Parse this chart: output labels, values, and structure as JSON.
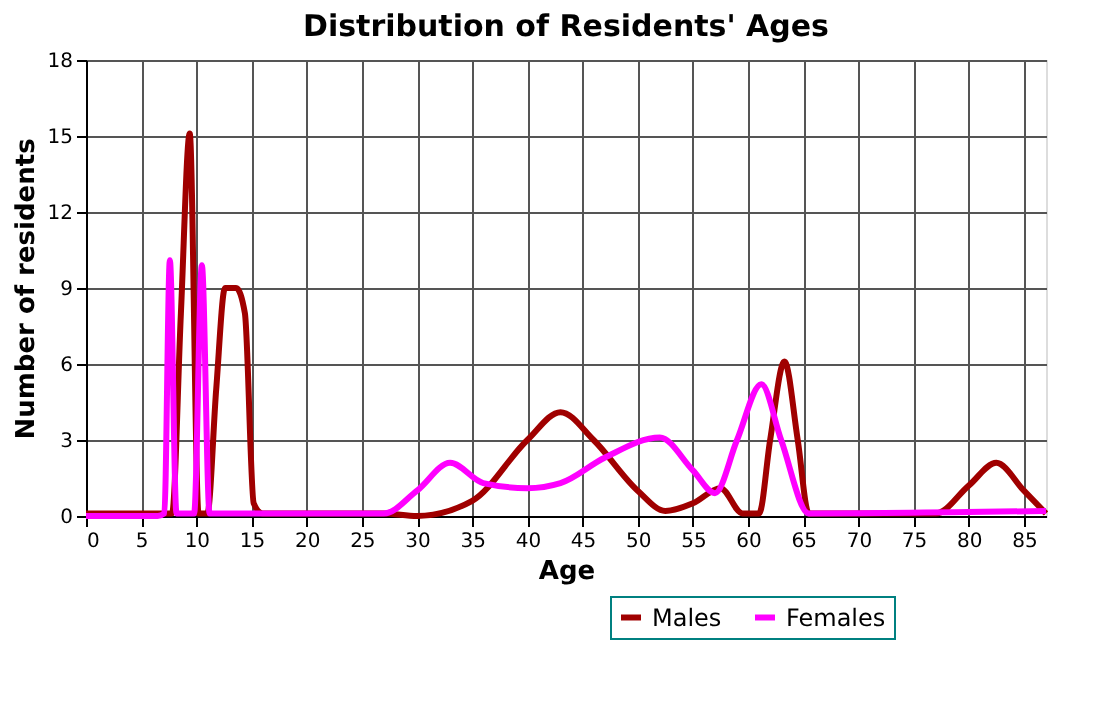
{
  "chart_data": {
    "type": "line",
    "title": "Distribution of Residents' Ages",
    "xlabel": "Age",
    "ylabel": "Number of residents",
    "xlim": [
      0,
      87
    ],
    "xticks": [
      0,
      5,
      10,
      15,
      20,
      25,
      30,
      35,
      40,
      45,
      50,
      55,
      60,
      65,
      70,
      75,
      80,
      85
    ],
    "ylim": [
      0,
      18
    ],
    "yticks": [
      0,
      3,
      6,
      9,
      12,
      15,
      18
    ],
    "grid": true,
    "legend": "bottom right",
    "line_style": "solid",
    "marker": "none",
    "series": [
      {
        "name": "Males",
        "color": "#a00000",
        "x": [
          0,
          7,
          7.8,
          8.6,
          9.4,
          10.2,
          11,
          11.8,
          12.6,
          13.6,
          14.4,
          15.2,
          16,
          27,
          30,
          35,
          40,
          43,
          46,
          50,
          52.5,
          55,
          57.5,
          59.5,
          61,
          62,
          63.3,
          64.5,
          65.5,
          70,
          77,
          80,
          82.5,
          85,
          87
        ],
        "values": [
          0.1,
          0.1,
          0.1,
          8,
          15.1,
          0.1,
          0.1,
          5,
          9,
          9,
          8,
          0.5,
          0.1,
          0.1,
          0,
          0.6,
          3,
          4.1,
          3,
          1,
          0.2,
          0.5,
          1.1,
          0.1,
          0.1,
          3,
          6.1,
          3,
          0.1,
          0.1,
          0.1,
          1.2,
          2.1,
          1,
          0.1
        ]
      },
      {
        "name": "Females",
        "color": "#ff00ff",
        "x": [
          0,
          6.5,
          7.1,
          7.6,
          8.2,
          8.8,
          9.8,
          10.5,
          11.2,
          12,
          27,
          30,
          33,
          36,
          40,
          43,
          47,
          52,
          55,
          57,
          59,
          61.2,
          63,
          65.5,
          87
        ],
        "values": [
          0,
          0,
          0.1,
          10.1,
          0.1,
          0.1,
          0.1,
          9.9,
          0.1,
          0.1,
          0.1,
          1,
          2.1,
          1.3,
          1.1,
          1.3,
          2.3,
          3.1,
          1.8,
          0.9,
          3,
          5.2,
          3,
          0.1,
          0.2
        ]
      }
    ]
  }
}
